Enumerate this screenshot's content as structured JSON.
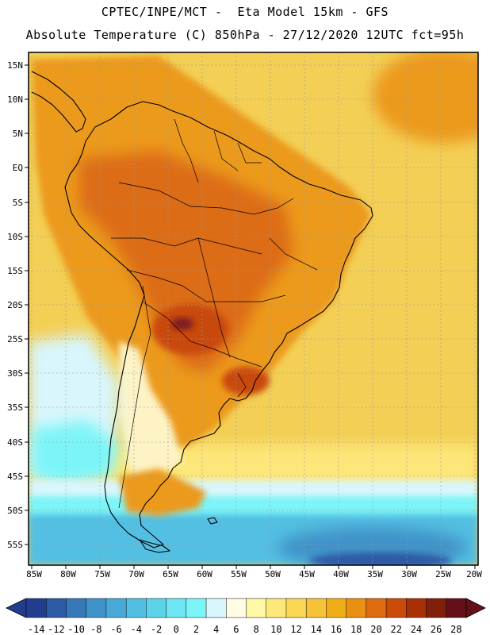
{
  "header": {
    "line1": "CPTEC/INPE/MCT -  Eta Model 15km - GFS",
    "line2": "Absolute Temperature (C) 850hPa - 27/12/2020 12UTC fct=95h"
  },
  "axes": {
    "lat_labels": [
      "15N",
      "10N",
      "5N",
      "EQ",
      "5S",
      "10S",
      "15S",
      "20S",
      "25S",
      "30S",
      "35S",
      "40S",
      "45S",
      "50S",
      "55S"
    ],
    "lon_labels": [
      "85W",
      "80W",
      "75W",
      "70W",
      "65W",
      "60W",
      "55W",
      "50W",
      "45W",
      "40W",
      "35W",
      "30W",
      "25W",
      "20W"
    ]
  },
  "colorbar": {
    "labels": [
      "-14",
      "-12",
      "-10",
      "-8",
      "-6",
      "-4",
      "-2",
      "0",
      "2",
      "4",
      "6",
      "8",
      "10",
      "12",
      "14",
      "16",
      "18",
      "20",
      "22",
      "24",
      "26",
      "28"
    ],
    "colors": [
      "#233d8e",
      "#2d5aa4",
      "#3779b8",
      "#3f93c8",
      "#49a9d6",
      "#52bfe2",
      "#5dd3ea",
      "#6ce6f2",
      "#7cf5f8",
      "#d8f6fc",
      "#fffbe4",
      "#fff7a6",
      "#fde97a",
      "#fbd756",
      "#f6c238",
      "#f0ae16",
      "#e98f12",
      "#df6c0e",
      "#ca4a08",
      "#a93006",
      "#80200a",
      "#651019"
    ],
    "low_color": "#233d8e",
    "high_color": "#651019"
  },
  "map": {
    "colors": {
      "ocean": "#f3cf55",
      "ocean_cool": "#fde77a",
      "land": "#ec9a1e",
      "land_hot": "#dd6c12",
      "core": "#c94a0a",
      "peak": "#7a1e24",
      "andes_cold": "#fdf3c5",
      "cold1": "#d8f6fc",
      "cold2": "#7cf5f8",
      "cold3": "#52bfe2",
      "cold4": "#3f93c8",
      "cold5": "#2d5aa4",
      "coast": "#000000",
      "grid": "#9a9a9a"
    }
  }
}
